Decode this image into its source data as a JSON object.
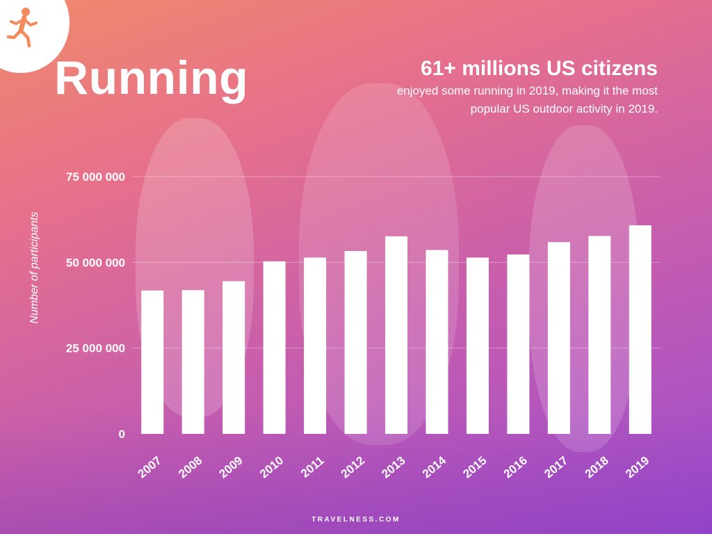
{
  "header": {
    "title": "Running",
    "headline": "61+ millions US citizens",
    "subtext": "enjoyed some running in 2019, making it the most popular US outdoor activity in 2019."
  },
  "footer": {
    "brand": "TRAVELNESS.COM"
  },
  "colors": {
    "bar": "#ffffff",
    "gridline": "rgba(255,255,255,0.35)",
    "logo_runner": "#f28a5c"
  },
  "icons": {
    "logo": "runner-icon"
  },
  "chart_data": {
    "type": "bar",
    "title": "",
    "xlabel": "",
    "ylabel": "Number of participants",
    "categories": [
      "2007",
      "2008",
      "2009",
      "2010",
      "2011",
      "2012",
      "2013",
      "2014",
      "2015",
      "2016",
      "2017",
      "2018",
      "2019"
    ],
    "values": [
      41800000,
      41900000,
      44500000,
      50300000,
      51400000,
      53300000,
      57600000,
      53600000,
      51400000,
      52300000,
      55900000,
      57700000,
      60800000
    ],
    "ylim": [
      0,
      75000000
    ],
    "yticks": [
      0,
      25000000,
      50000000,
      75000000
    ],
    "ytick_labels": [
      "0",
      "25 000 000",
      "50 000 000",
      "75 000 000"
    ],
    "grid": true,
    "legend": "none"
  }
}
